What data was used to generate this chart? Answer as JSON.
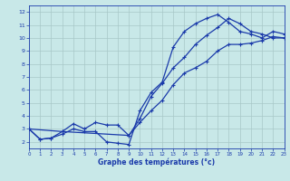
{
  "background_color": "#c8e8e8",
  "grid_color": "#a8c8c8",
  "line_color": "#1a3aaa",
  "xlabel": "Graphe des températures (°c)",
  "xlim": [
    0,
    23
  ],
  "ylim": [
    1.5,
    12.5
  ],
  "xticks": [
    0,
    1,
    2,
    3,
    4,
    5,
    6,
    7,
    8,
    9,
    10,
    11,
    12,
    13,
    14,
    15,
    16,
    17,
    18,
    19,
    20,
    21,
    22,
    23
  ],
  "yticks": [
    2,
    3,
    4,
    5,
    6,
    7,
    8,
    9,
    10,
    11,
    12
  ],
  "line1_x": [
    0,
    1,
    2,
    3,
    4,
    5,
    6,
    7,
    8,
    9,
    10,
    11,
    12,
    13,
    14,
    15,
    16,
    17,
    18,
    19,
    20,
    21,
    22,
    23
  ],
  "line1_y": [
    3.0,
    2.2,
    2.3,
    2.6,
    3.0,
    2.8,
    2.8,
    2.0,
    1.9,
    1.8,
    4.4,
    5.8,
    6.6,
    9.3,
    10.5,
    11.1,
    11.5,
    11.8,
    11.2,
    10.5,
    10.3,
    10.0,
    10.5,
    10.3
  ],
  "line2_x": [
    0,
    1,
    2,
    3,
    4,
    5,
    6,
    7,
    8,
    9,
    10,
    11,
    12,
    13,
    14,
    15,
    16,
    17,
    18,
    19,
    20,
    21,
    22,
    23
  ],
  "line2_y": [
    3.0,
    2.2,
    2.3,
    2.8,
    3.4,
    3.0,
    3.5,
    3.3,
    3.3,
    2.5,
    3.5,
    4.4,
    5.2,
    6.4,
    7.3,
    7.7,
    8.2,
    9.0,
    9.5,
    9.5,
    9.6,
    9.8,
    10.1,
    10.0
  ],
  "line3_x": [
    0,
    3,
    9,
    10,
    11,
    12,
    13,
    14,
    15,
    16,
    17,
    18,
    19,
    20,
    21,
    22,
    23
  ],
  "line3_y": [
    3.0,
    2.8,
    2.5,
    3.8,
    5.5,
    6.5,
    7.7,
    8.5,
    9.5,
    10.2,
    10.8,
    11.5,
    11.1,
    10.5,
    10.3,
    10.0,
    10.0
  ]
}
